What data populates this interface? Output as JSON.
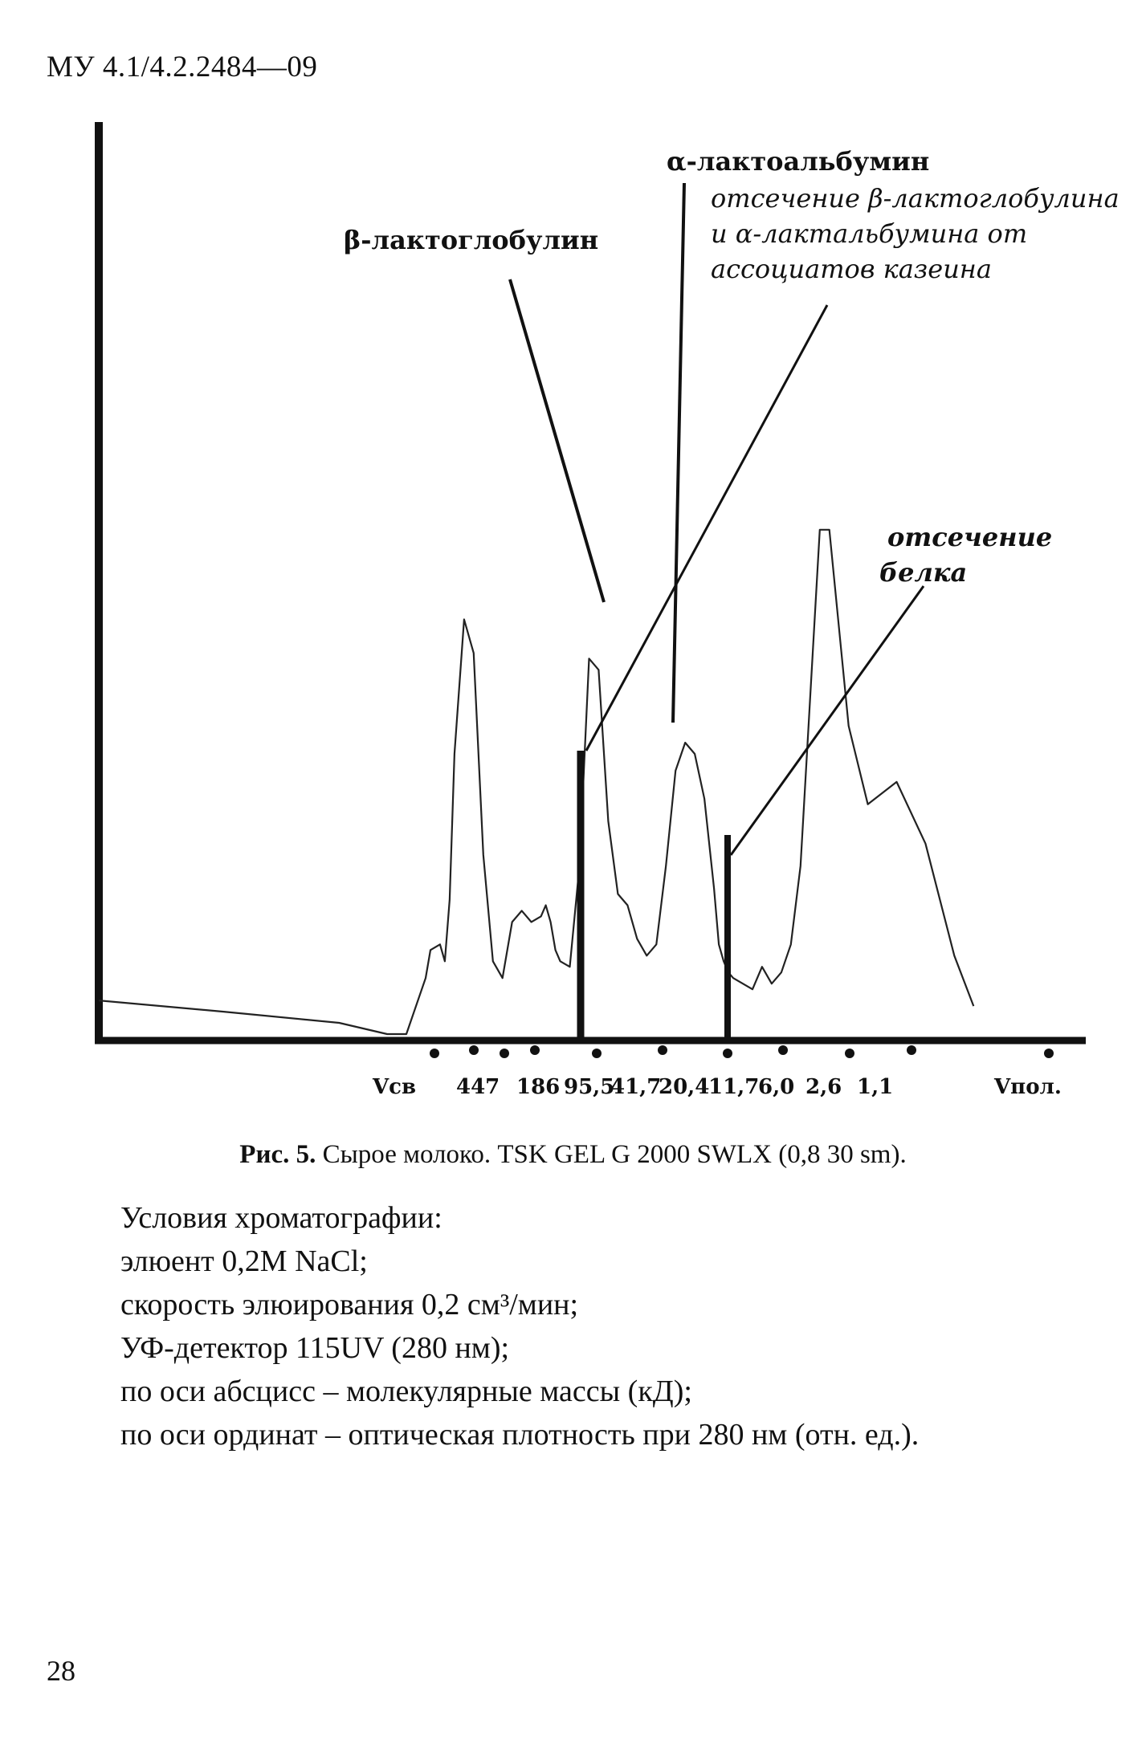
{
  "header": {
    "doc_code": "МУ 4.1/4.2.2484—09"
  },
  "chart_data": {
    "type": "line",
    "title": "",
    "xlabel": "",
    "ylabel": "",
    "x_tick_labels": [
      "Vсв",
      "447",
      "186",
      "95,5",
      "41,7",
      "20,4",
      "11,7",
      "6,0",
      "2,6",
      "1,1",
      "Vпол."
    ],
    "series": [
      {
        "x_relative": [
          0.0,
          0.13,
          0.25,
          0.3,
          0.32,
          0.34,
          0.345,
          0.355,
          0.36,
          0.365,
          0.37,
          0.38,
          0.39,
          0.4,
          0.41,
          0.42,
          0.43,
          0.44,
          0.45,
          0.46,
          0.465,
          0.47,
          0.475,
          0.48,
          0.49,
          0.5,
          0.51,
          0.52,
          0.53,
          0.54,
          0.55,
          0.56,
          0.57,
          0.58,
          0.59,
          0.6,
          0.61,
          0.62,
          0.63,
          0.64,
          0.645,
          0.65,
          0.655,
          0.66,
          0.67,
          0.68,
          0.69,
          0.7,
          0.71,
          0.72,
          0.73,
          0.74,
          0.75,
          0.76,
          0.78,
          0.8,
          0.83,
          0.86,
          0.89,
          0.91
        ],
        "y_relative": [
          0.06,
          0.04,
          0.02,
          0.0,
          0.0,
          0.1,
          0.15,
          0.16,
          0.13,
          0.24,
          0.5,
          0.74,
          0.68,
          0.32,
          0.13,
          0.1,
          0.2,
          0.22,
          0.2,
          0.21,
          0.23,
          0.2,
          0.15,
          0.13,
          0.12,
          0.3,
          0.67,
          0.65,
          0.38,
          0.25,
          0.23,
          0.17,
          0.14,
          0.16,
          0.3,
          0.47,
          0.52,
          0.5,
          0.42,
          0.26,
          0.16,
          0.13,
          0.11,
          0.1,
          0.09,
          0.08,
          0.12,
          0.09,
          0.11,
          0.16,
          0.3,
          0.6,
          0.9,
          0.9,
          0.55,
          0.41,
          0.45,
          0.34,
          0.14,
          0.05
        ]
      }
    ],
    "annotations": [
      "β-лактоглобулин",
      "α-лактоальбумин",
      "отсечение β-лактоглобулина и α-лактальбумина от ассоциатов казеина",
      "отсечение белка"
    ]
  },
  "annotations": {
    "beta": "β-лактоглобулин",
    "alpha": "α-лактоальбумин",
    "cut1_line1": "отсечение β-лактоглобулина",
    "cut1_line2": "и α-лактальбумина от",
    "cut1_line3": "ассоциатов казеина",
    "cut2_line1": "отсечение",
    "cut2_line2": "белка"
  },
  "caption": {
    "label": "Рис. 5.",
    "text": " Сырое молоко. TSK GEL G 2000 SWLX (0,8   30 sm)."
  },
  "conditions": [
    "Условия хроматографии:",
    "элюент 0,2М NaCl;",
    "скорость элюирования 0,2 см³/мин;",
    "УФ-детектор 115UV (280 нм);",
    "по оси абсцисс – молекулярные массы (кД);",
    "по оси ординат – оптическая плотность при 280 нм (отн. ед.)."
  ],
  "page_number": "28"
}
